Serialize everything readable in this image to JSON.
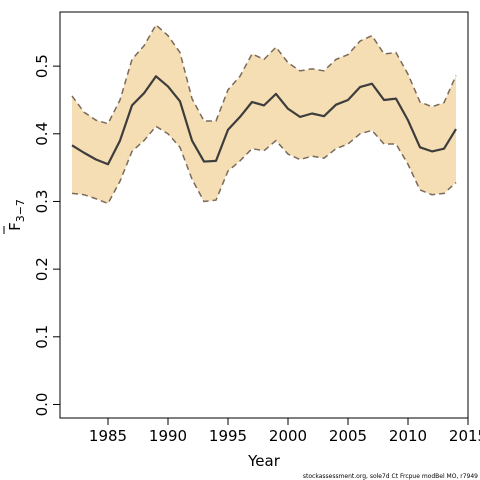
{
  "chart_data": {
    "type": "line",
    "title": "",
    "xlabel": "Year",
    "ylabel_main": "F",
    "ylabel_sub": "3−7",
    "xlim": [
      1981,
      2015
    ],
    "ylim": [
      -0.02,
      0.58
    ],
    "x_ticks": [
      1985,
      1990,
      1995,
      2000,
      2005,
      2010,
      2015
    ],
    "y_ticks": [
      0.0,
      0.1,
      0.2,
      0.3,
      0.4,
      0.5
    ],
    "y_tick_labels": [
      "0.0",
      "0.1",
      "0.2",
      "0.3",
      "0.4",
      "0.5"
    ],
    "grid": false,
    "legend": "none",
    "colors": {
      "band": "#f5deb3",
      "band_edge": "#7a6a5a",
      "line": "#3d3d3d"
    },
    "x": [
      1982,
      1983,
      1984,
      1985,
      1986,
      1987,
      1988,
      1989,
      1990,
      1991,
      1992,
      1993,
      1994,
      1995,
      1996,
      1997,
      1998,
      1999,
      2000,
      2001,
      2002,
      2003,
      2004,
      2005,
      2006,
      2007,
      2008,
      2009,
      2010,
      2011,
      2012,
      2013,
      2014
    ],
    "series": [
      {
        "role": "estimate",
        "values": [
          0.383,
          0.372,
          0.362,
          0.355,
          0.39,
          0.442,
          0.46,
          0.485,
          0.47,
          0.448,
          0.39,
          0.359,
          0.36,
          0.406,
          0.425,
          0.447,
          0.442,
          0.459,
          0.437,
          0.425,
          0.43,
          0.426,
          0.443,
          0.45,
          0.469,
          0.474,
          0.45,
          0.452,
          0.42,
          0.38,
          0.374,
          0.378,
          0.407
        ]
      },
      {
        "role": "upper",
        "values": [
          0.456,
          0.432,
          0.42,
          0.415,
          0.45,
          0.51,
          0.53,
          0.561,
          0.545,
          0.52,
          0.452,
          0.419,
          0.419,
          0.465,
          0.485,
          0.518,
          0.51,
          0.528,
          0.505,
          0.493,
          0.496,
          0.493,
          0.51,
          0.517,
          0.537,
          0.545,
          0.518,
          0.52,
          0.488,
          0.447,
          0.44,
          0.446,
          0.486
        ]
      },
      {
        "role": "lower",
        "values": [
          0.312,
          0.31,
          0.304,
          0.297,
          0.33,
          0.374,
          0.39,
          0.411,
          0.4,
          0.38,
          0.333,
          0.3,
          0.302,
          0.345,
          0.36,
          0.378,
          0.375,
          0.39,
          0.37,
          0.362,
          0.367,
          0.364,
          0.378,
          0.385,
          0.4,
          0.405,
          0.385,
          0.385,
          0.355,
          0.317,
          0.31,
          0.312,
          0.328
        ]
      }
    ]
  },
  "footer": {
    "source": "stockassessment.org, sole7d Ct Frcpue modBel MO, r7949"
  }
}
